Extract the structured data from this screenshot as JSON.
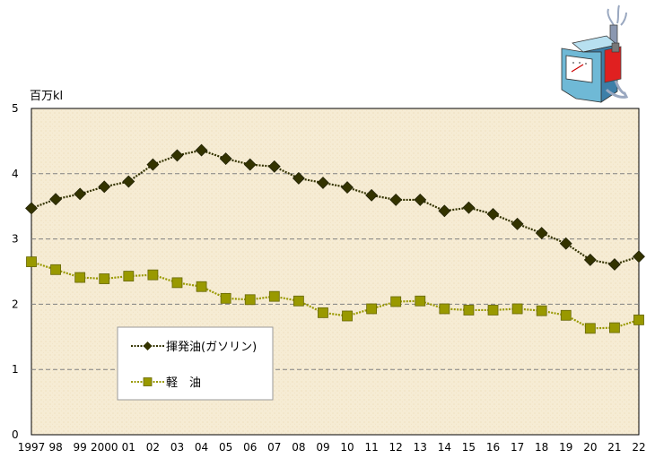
{
  "chart_data": {
    "type": "line",
    "ylabel": "百万kl",
    "ylim": [
      0,
      5
    ],
    "yticks": [
      "0",
      "1",
      "2",
      "3",
      "4",
      "5"
    ],
    "categories": [
      "1997",
      "98",
      "99",
      "2000",
      "01",
      "02",
      "03",
      "04",
      "05",
      "06",
      "07",
      "08",
      "09",
      "10",
      "11",
      "12",
      "13",
      "14",
      "15",
      "16",
      "17",
      "18",
      "19",
      "20",
      "21",
      "22"
    ],
    "grid": true,
    "legend_position": "lower-left",
    "series": [
      {
        "name": "揮発油(ガソリン)",
        "color": "#333300",
        "marker": "diamond",
        "values": [
          3.47,
          3.61,
          3.69,
          3.8,
          3.88,
          4.14,
          4.28,
          4.36,
          4.23,
          4.14,
          4.11,
          3.93,
          3.86,
          3.79,
          3.67,
          3.6,
          3.6,
          3.43,
          3.48,
          3.38,
          3.23,
          3.09,
          2.93,
          2.68,
          2.61,
          2.73
        ]
      },
      {
        "name": "軽　油",
        "color": "#999900",
        "marker": "square",
        "values": [
          2.65,
          2.53,
          2.41,
          2.39,
          2.43,
          2.45,
          2.33,
          2.27,
          2.09,
          2.07,
          2.12,
          2.05,
          1.87,
          1.82,
          1.93,
          2.04,
          2.05,
          1.93,
          1.91,
          1.91,
          1.93,
          1.9,
          1.83,
          1.63,
          1.64,
          1.76
        ]
      }
    ]
  },
  "colors": {
    "plot_background": "#f6ecd4",
    "gridline": "#808080"
  },
  "icons": {
    "decoration": "fuel-pump-icon"
  }
}
